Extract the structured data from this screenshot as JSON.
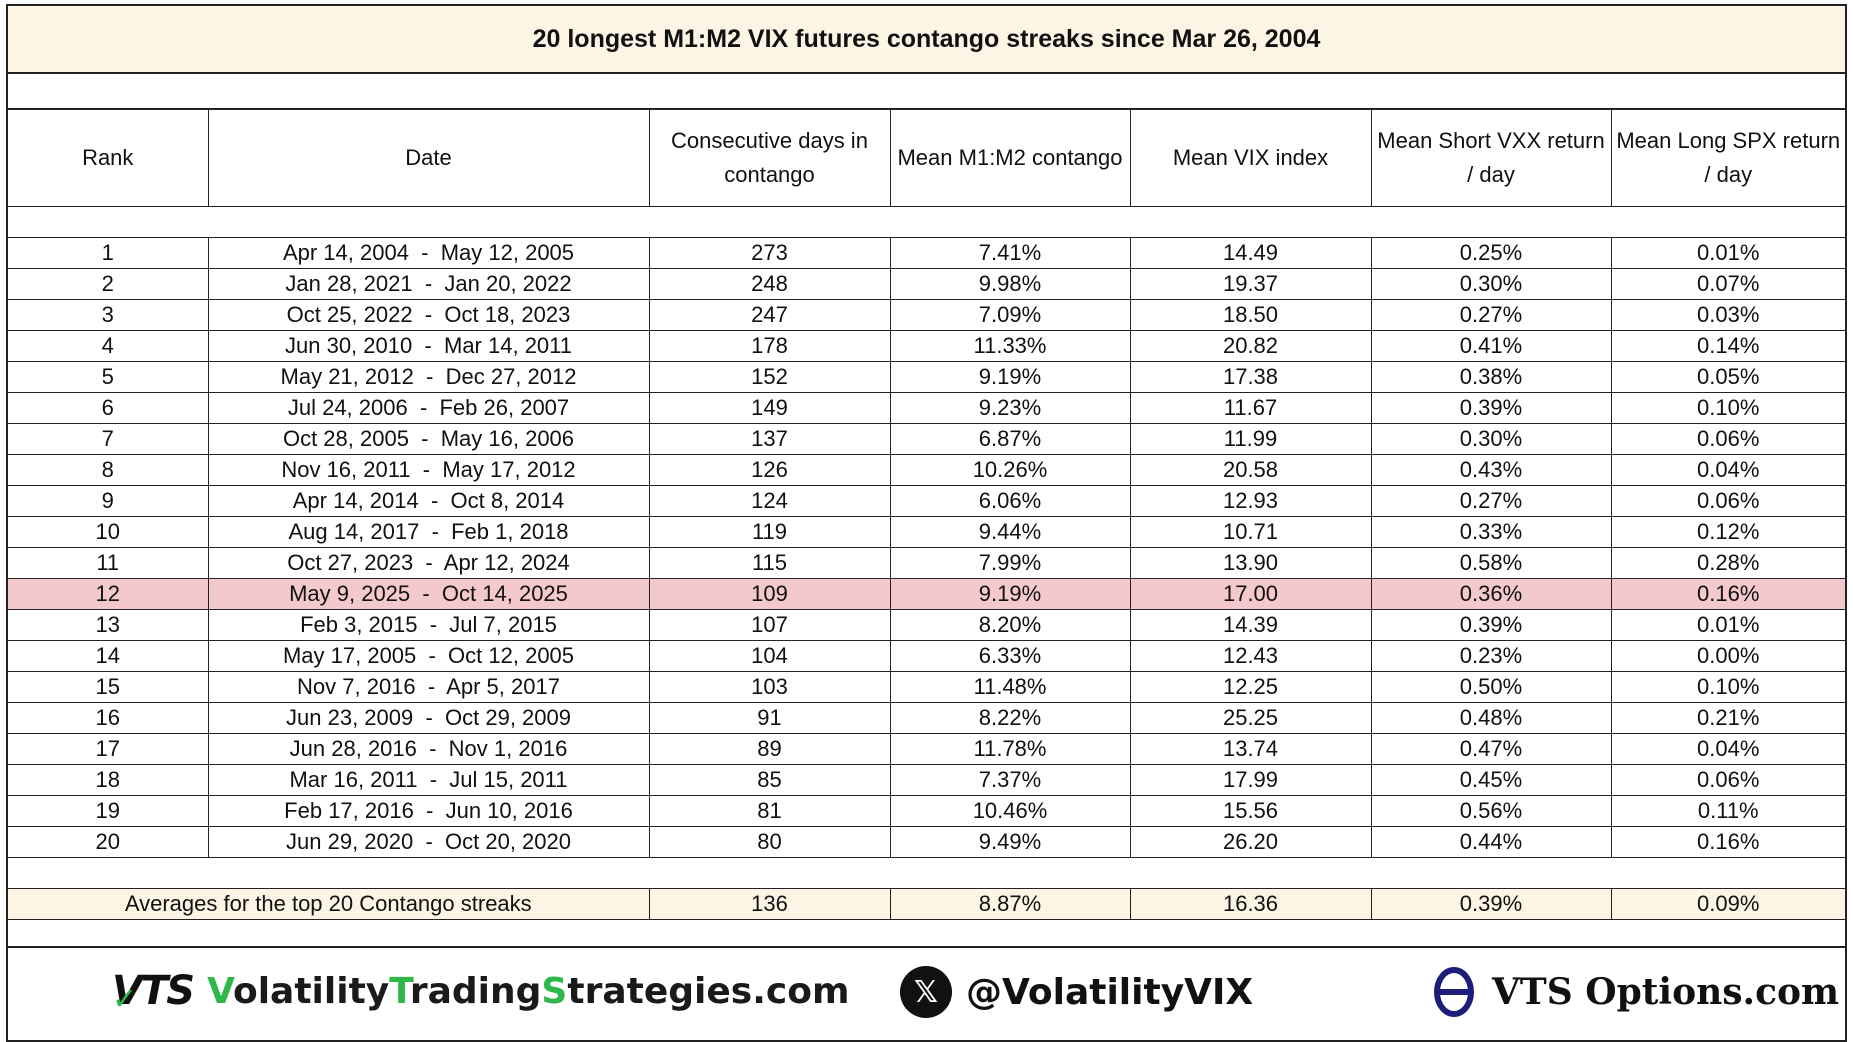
{
  "title": "20 longest M1:M2 VIX futures contango streaks since Mar 26, 2004",
  "headers": [
    "Rank",
    "Date",
    "Consecutive days in contango",
    "Mean M1:M2 contango",
    "Mean VIX index",
    "Mean Short VXX return / day",
    "Mean Long SPX return / day"
  ],
  "rows": [
    [
      "1",
      "Apr 14, 2004  -  May 12, 2005",
      "273",
      "7.41%",
      "14.49",
      "0.25%",
      "0.01%"
    ],
    [
      "2",
      "Jan 28, 2021  -  Jan 20, 2022",
      "248",
      "9.98%",
      "19.37",
      "0.30%",
      "0.07%"
    ],
    [
      "3",
      "Oct 25, 2022  -  Oct 18, 2023",
      "247",
      "7.09%",
      "18.50",
      "0.27%",
      "0.03%"
    ],
    [
      "4",
      "Jun 30, 2010  -  Mar 14, 2011",
      "178",
      "11.33%",
      "20.82",
      "0.41%",
      "0.14%"
    ],
    [
      "5",
      "May 21, 2012  -  Dec 27, 2012",
      "152",
      "9.19%",
      "17.38",
      "0.38%",
      "0.05%"
    ],
    [
      "6",
      "Jul 24, 2006  -  Feb 26, 2007",
      "149",
      "9.23%",
      "11.67",
      "0.39%",
      "0.10%"
    ],
    [
      "7",
      "Oct 28, 2005  -  May 16, 2006",
      "137",
      "6.87%",
      "11.99",
      "0.30%",
      "0.06%"
    ],
    [
      "8",
      "Nov 16, 2011  -  May 17, 2012",
      "126",
      "10.26%",
      "20.58",
      "0.43%",
      "0.04%"
    ],
    [
      "9",
      "Apr 14, 2014  -  Oct 8, 2014",
      "124",
      "6.06%",
      "12.93",
      "0.27%",
      "0.06%"
    ],
    [
      "10",
      "Aug 14, 2017  -  Feb 1, 2018",
      "119",
      "9.44%",
      "10.71",
      "0.33%",
      "0.12%"
    ],
    [
      "11",
      "Oct 27, 2023  -  Apr 12, 2024",
      "115",
      "7.99%",
      "13.90",
      "0.58%",
      "0.28%"
    ],
    [
      "12",
      "May 9, 2025  -  Oct 14, 2025",
      "109",
      "9.19%",
      "17.00",
      "0.36%",
      "0.16%"
    ],
    [
      "13",
      "Feb 3, 2015  -  Jul 7, 2015",
      "107",
      "8.20%",
      "14.39",
      "0.39%",
      "0.01%"
    ],
    [
      "14",
      "May 17, 2005  -  Oct 12, 2005",
      "104",
      "6.33%",
      "12.43",
      "0.23%",
      "0.00%"
    ],
    [
      "15",
      "Nov 7, 2016  -  Apr 5, 2017",
      "103",
      "11.48%",
      "12.25",
      "0.50%",
      "0.10%"
    ],
    [
      "16",
      "Jun 23, 2009  -  Oct 29, 2009",
      "91",
      "8.22%",
      "25.25",
      "0.48%",
      "0.21%"
    ],
    [
      "17",
      "Jun 28, 2016  -  Nov 1, 2016",
      "89",
      "11.78%",
      "13.74",
      "0.47%",
      "0.04%"
    ],
    [
      "18",
      "Mar 16, 2011  -  Jul 15, 2011",
      "85",
      "7.37%",
      "17.99",
      "0.45%",
      "0.06%"
    ],
    [
      "19",
      "Feb 17, 2016  -  Jun 10, 2016",
      "81",
      "10.46%",
      "15.56",
      "0.56%",
      "0.11%"
    ],
    [
      "20",
      "Jun 29, 2020  -  Oct 20, 2020",
      "80",
      "9.49%",
      "26.20",
      "0.44%",
      "0.16%"
    ]
  ],
  "highlight_rank": "12",
  "highlight_color": "#f4c9cc",
  "header_bg_color": "#fdf5e3",
  "averages": {
    "label": "Averages for the top 20 Contango streaks",
    "values": [
      "136",
      "8.87%",
      "16.36",
      "0.39%",
      "0.09%"
    ]
  },
  "footer": {
    "vts_logo_text": "VTS",
    "site_parts": [
      "V",
      "olatility",
      "T",
      "rading",
      "S",
      "trategies.com"
    ],
    "x_icon": "x-logo-icon",
    "handle": "@VolatilityVIX",
    "options_icon": "theta-icon",
    "options_site": "VTS Options.com"
  }
}
